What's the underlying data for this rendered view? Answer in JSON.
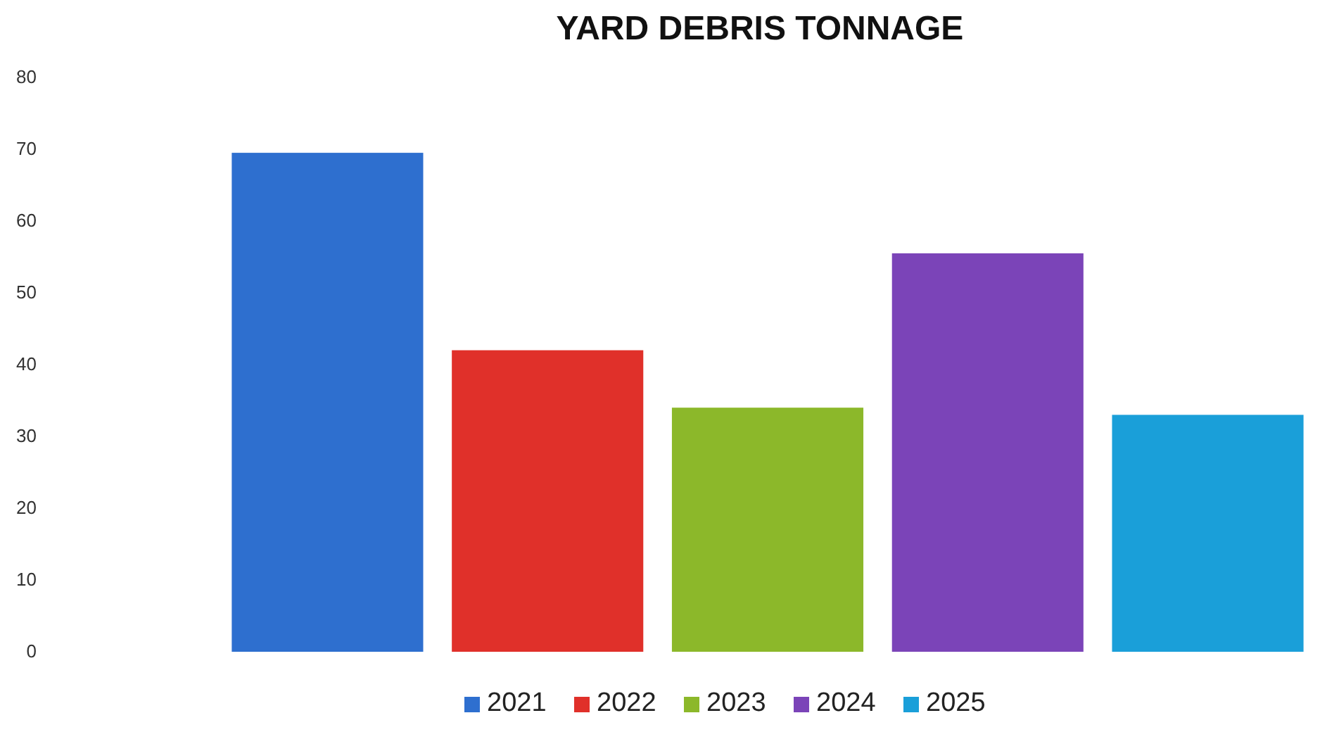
{
  "chart_data": {
    "type": "bar",
    "title": "YARD DEBRIS TONNAGE",
    "stacked": true,
    "categories": [
      null,
      null,
      null,
      null,
      null
    ],
    "series": [
      {
        "name": "2021",
        "color": "#2e6fcf",
        "values": [
          69.5,
          null,
          null,
          null,
          null
        ]
      },
      {
        "name": "2022",
        "color": "#e0302a",
        "values": [
          null,
          42,
          null,
          null,
          null
        ]
      },
      {
        "name": "2023",
        "color": "#8cb82a",
        "values": [
          null,
          null,
          34,
          null,
          null
        ]
      },
      {
        "name": "2024",
        "color": "#7b44b8",
        "values": [
          null,
          null,
          null,
          55.5,
          null
        ]
      },
      {
        "name": "2025",
        "color": "#1a9fd9",
        "values": [
          null,
          null,
          null,
          null,
          33
        ]
      }
    ],
    "ylim": [
      0,
      80
    ],
    "yticks": [
      0,
      10,
      20,
      30,
      40,
      50,
      60,
      70,
      80
    ],
    "grid": false,
    "legend": "bottom",
    "tick_labels": "y"
  }
}
